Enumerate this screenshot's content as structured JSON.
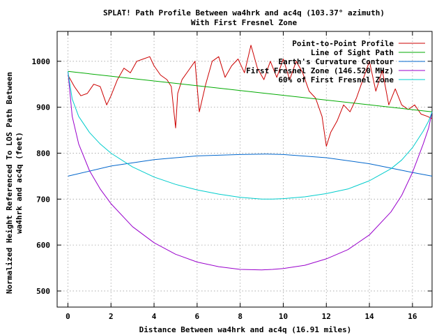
{
  "chart_data": {
    "type": "line",
    "title": "SPLAT! Path Profile Between wa4hrk and ac4q (103.37° azimuth)",
    "subtitle": "With First Fresnel Zone",
    "xlabel": "Distance Between wa4hrk and ac4q (16.91 miles)",
    "ylabel_line1": "Normalized Height Referenced To LOS Path Between",
    "ylabel_line2": "wa4hrk and ac4q (feet)",
    "xlim": [
      -0.5,
      16.91
    ],
    "ylim": [
      465,
      1065
    ],
    "xticks": [
      0,
      2,
      4,
      6,
      8,
      10,
      12,
      14,
      16
    ],
    "yticks": [
      500,
      600,
      700,
      800,
      900,
      1000
    ],
    "grid": true,
    "legend_position": "top-right",
    "series": [
      {
        "name": "Point-to-Point Profile",
        "color": "#cc0000",
        "x": [
          0,
          0.3,
          0.6,
          0.9,
          1.2,
          1.5,
          1.8,
          2.0,
          2.3,
          2.6,
          2.9,
          3.2,
          3.5,
          3.8,
          4.0,
          4.3,
          4.6,
          4.8,
          5.0,
          5.1,
          5.3,
          5.6,
          5.9,
          6.1,
          6.4,
          6.7,
          7.0,
          7.3,
          7.6,
          7.9,
          8.2,
          8.5,
          8.8,
          9.1,
          9.4,
          9.7,
          10.0,
          10.3,
          10.6,
          10.9,
          11.2,
          11.5,
          11.8,
          12.0,
          12.2,
          12.5,
          12.8,
          13.1,
          13.4,
          13.7,
          14.0,
          14.3,
          14.6,
          14.9,
          15.2,
          15.5,
          15.8,
          16.1,
          16.4,
          16.7,
          16.91
        ],
        "values": [
          970,
          945,
          925,
          930,
          950,
          945,
          905,
          925,
          960,
          985,
          975,
          1000,
          1005,
          1010,
          990,
          970,
          960,
          945,
          855,
          930,
          960,
          980,
          1000,
          890,
          950,
          1000,
          1010,
          965,
          990,
          1005,
          975,
          1035,
          985,
          960,
          1000,
          965,
          1005,
          960,
          1000,
          975,
          935,
          920,
          880,
          815,
          845,
          870,
          905,
          890,
          920,
          960,
          1000,
          935,
          980,
          905,
          940,
          905,
          895,
          905,
          885,
          880,
          875
        ]
      },
      {
        "name": "Line of Sight Path",
        "color": "#00aa00",
        "x": [
          0,
          16.91
        ],
        "values": [
          978,
          890
        ]
      },
      {
        "name": "Earth's Curvature Contour",
        "color": "#0066cc",
        "x": [
          0,
          2,
          4,
          6,
          8,
          9.2,
          10,
          12,
          14,
          16,
          16.91
        ],
        "values": [
          750,
          772,
          786,
          794,
          797,
          798,
          797,
          790,
          777,
          758,
          750
        ]
      },
      {
        "name": "First Fresnel Zone (146.520 MHz)",
        "color": "#9900cc",
        "x": [
          0,
          0.2,
          0.5,
          1,
          1.5,
          2,
          3,
          4,
          5,
          6,
          7,
          8,
          9,
          9.5,
          10,
          11,
          12,
          13,
          14,
          15,
          15.5,
          16,
          16.5,
          16.75,
          16.91
        ],
        "values": [
          978,
          880,
          820,
          762,
          722,
          690,
          640,
          605,
          580,
          563,
          553,
          547,
          546,
          547,
          549,
          556,
          570,
          590,
          622,
          672,
          708,
          758,
          820,
          855,
          890
        ]
      },
      {
        "name": "60% of First Fresnel Zone",
        "color": "#00cccc",
        "x": [
          0,
          0.2,
          0.5,
          1,
          1.5,
          2,
          3,
          4,
          5,
          6,
          7,
          8,
          9,
          9.5,
          10,
          11,
          12,
          13,
          14,
          15,
          15.5,
          16,
          16.5,
          16.75,
          16.91
        ],
        "values": [
          978,
          918,
          880,
          845,
          820,
          800,
          770,
          748,
          732,
          720,
          711,
          704,
          700,
          700,
          701,
          705,
          712,
          722,
          740,
          766,
          785,
          812,
          848,
          870,
          890
        ]
      }
    ]
  }
}
